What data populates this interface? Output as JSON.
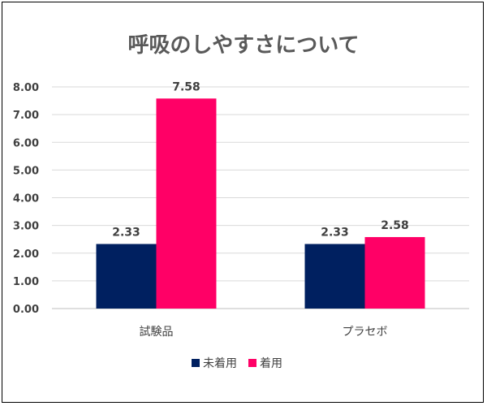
{
  "chart_data": {
    "type": "bar",
    "title": "呼吸のしやすさについて",
    "categories": [
      "試験品",
      "プラセボ"
    ],
    "series": [
      {
        "name": "未着用",
        "values": [
          2.33,
          2.33
        ],
        "color": "#002060"
      },
      {
        "name": "着用",
        "values": [
          7.58,
          2.58
        ],
        "color": "#FF0066"
      }
    ],
    "value_labels": [
      [
        "2.33",
        "2.33"
      ],
      [
        "7.58",
        "2.58"
      ]
    ],
    "ylim": [
      0,
      8
    ],
    "yticks": [
      "0.00",
      "1.00",
      "2.00",
      "3.00",
      "4.00",
      "5.00",
      "6.00",
      "7.00",
      "8.00"
    ],
    "grid": true,
    "legend_position": "bottom"
  }
}
